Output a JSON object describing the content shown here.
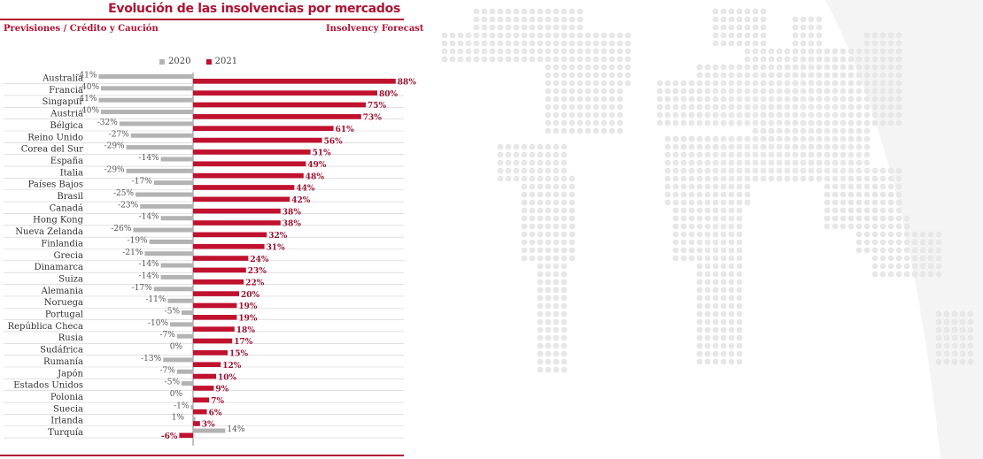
{
  "header": {
    "title": "Evolución de las insolvencias por mercados",
    "subtitle_left": "Previsiones  / Crédito y Caución",
    "subtitle_right": "Insolvency Forecast"
  },
  "colors": {
    "accent": "#b01232",
    "series_2020": "#b3b3b3",
    "series_2021": "#c0112f",
    "map_dots": "#e7e7e7"
  },
  "chart_data": {
    "type": "bar",
    "orientation": "horizontal",
    "categories": [
      "Australia",
      "Francia",
      "Singapur",
      "Austria",
      "Bélgica",
      "Reino Unido",
      "Corea del Sur",
      "España",
      "Italia",
      "Países Bajos",
      "Brasil",
      "Canadá",
      "Hong Kong",
      "Nueva Zelanda",
      "Finlandia",
      "Grecia",
      "Dinamarca",
      "Suiza",
      "Alemania",
      "Noruega",
      "Portugal",
      "República Checa",
      "Rusia",
      "Sudáfrica",
      "Rumanía",
      "Japón",
      "Estados Unidos",
      "Polonia",
      "Suecia",
      "Irlanda",
      "Turquía"
    ],
    "series": [
      {
        "name": "2020",
        "values": [
          -41,
          -40,
          -41,
          -40,
          -32,
          -27,
          -29,
          -14,
          -29,
          -17,
          -25,
          -23,
          -14,
          -26,
          -19,
          -21,
          -14,
          -14,
          -17,
          -11,
          -5,
          -10,
          -7,
          0,
          -13,
          -7,
          -5,
          0,
          -1,
          1,
          14
        ]
      },
      {
        "name": "2021",
        "values": [
          88,
          80,
          75,
          73,
          61,
          56,
          51,
          49,
          48,
          44,
          42,
          38,
          38,
          32,
          31,
          24,
          23,
          22,
          20,
          19,
          19,
          18,
          17,
          15,
          12,
          10,
          9,
          7,
          6,
          3,
          -6
        ]
      }
    ],
    "value_suffix": "%",
    "legend_position": "top",
    "grid": false
  }
}
